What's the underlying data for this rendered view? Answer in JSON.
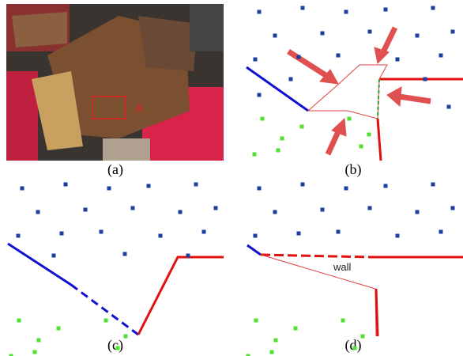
{
  "panels": [
    {
      "caption": "(a)"
    },
    {
      "caption": "(b)"
    },
    {
      "caption": "(c)"
    },
    {
      "caption": "(d)"
    }
  ],
  "annotations": {
    "region_label": "A",
    "wall_label": "wall"
  }
}
